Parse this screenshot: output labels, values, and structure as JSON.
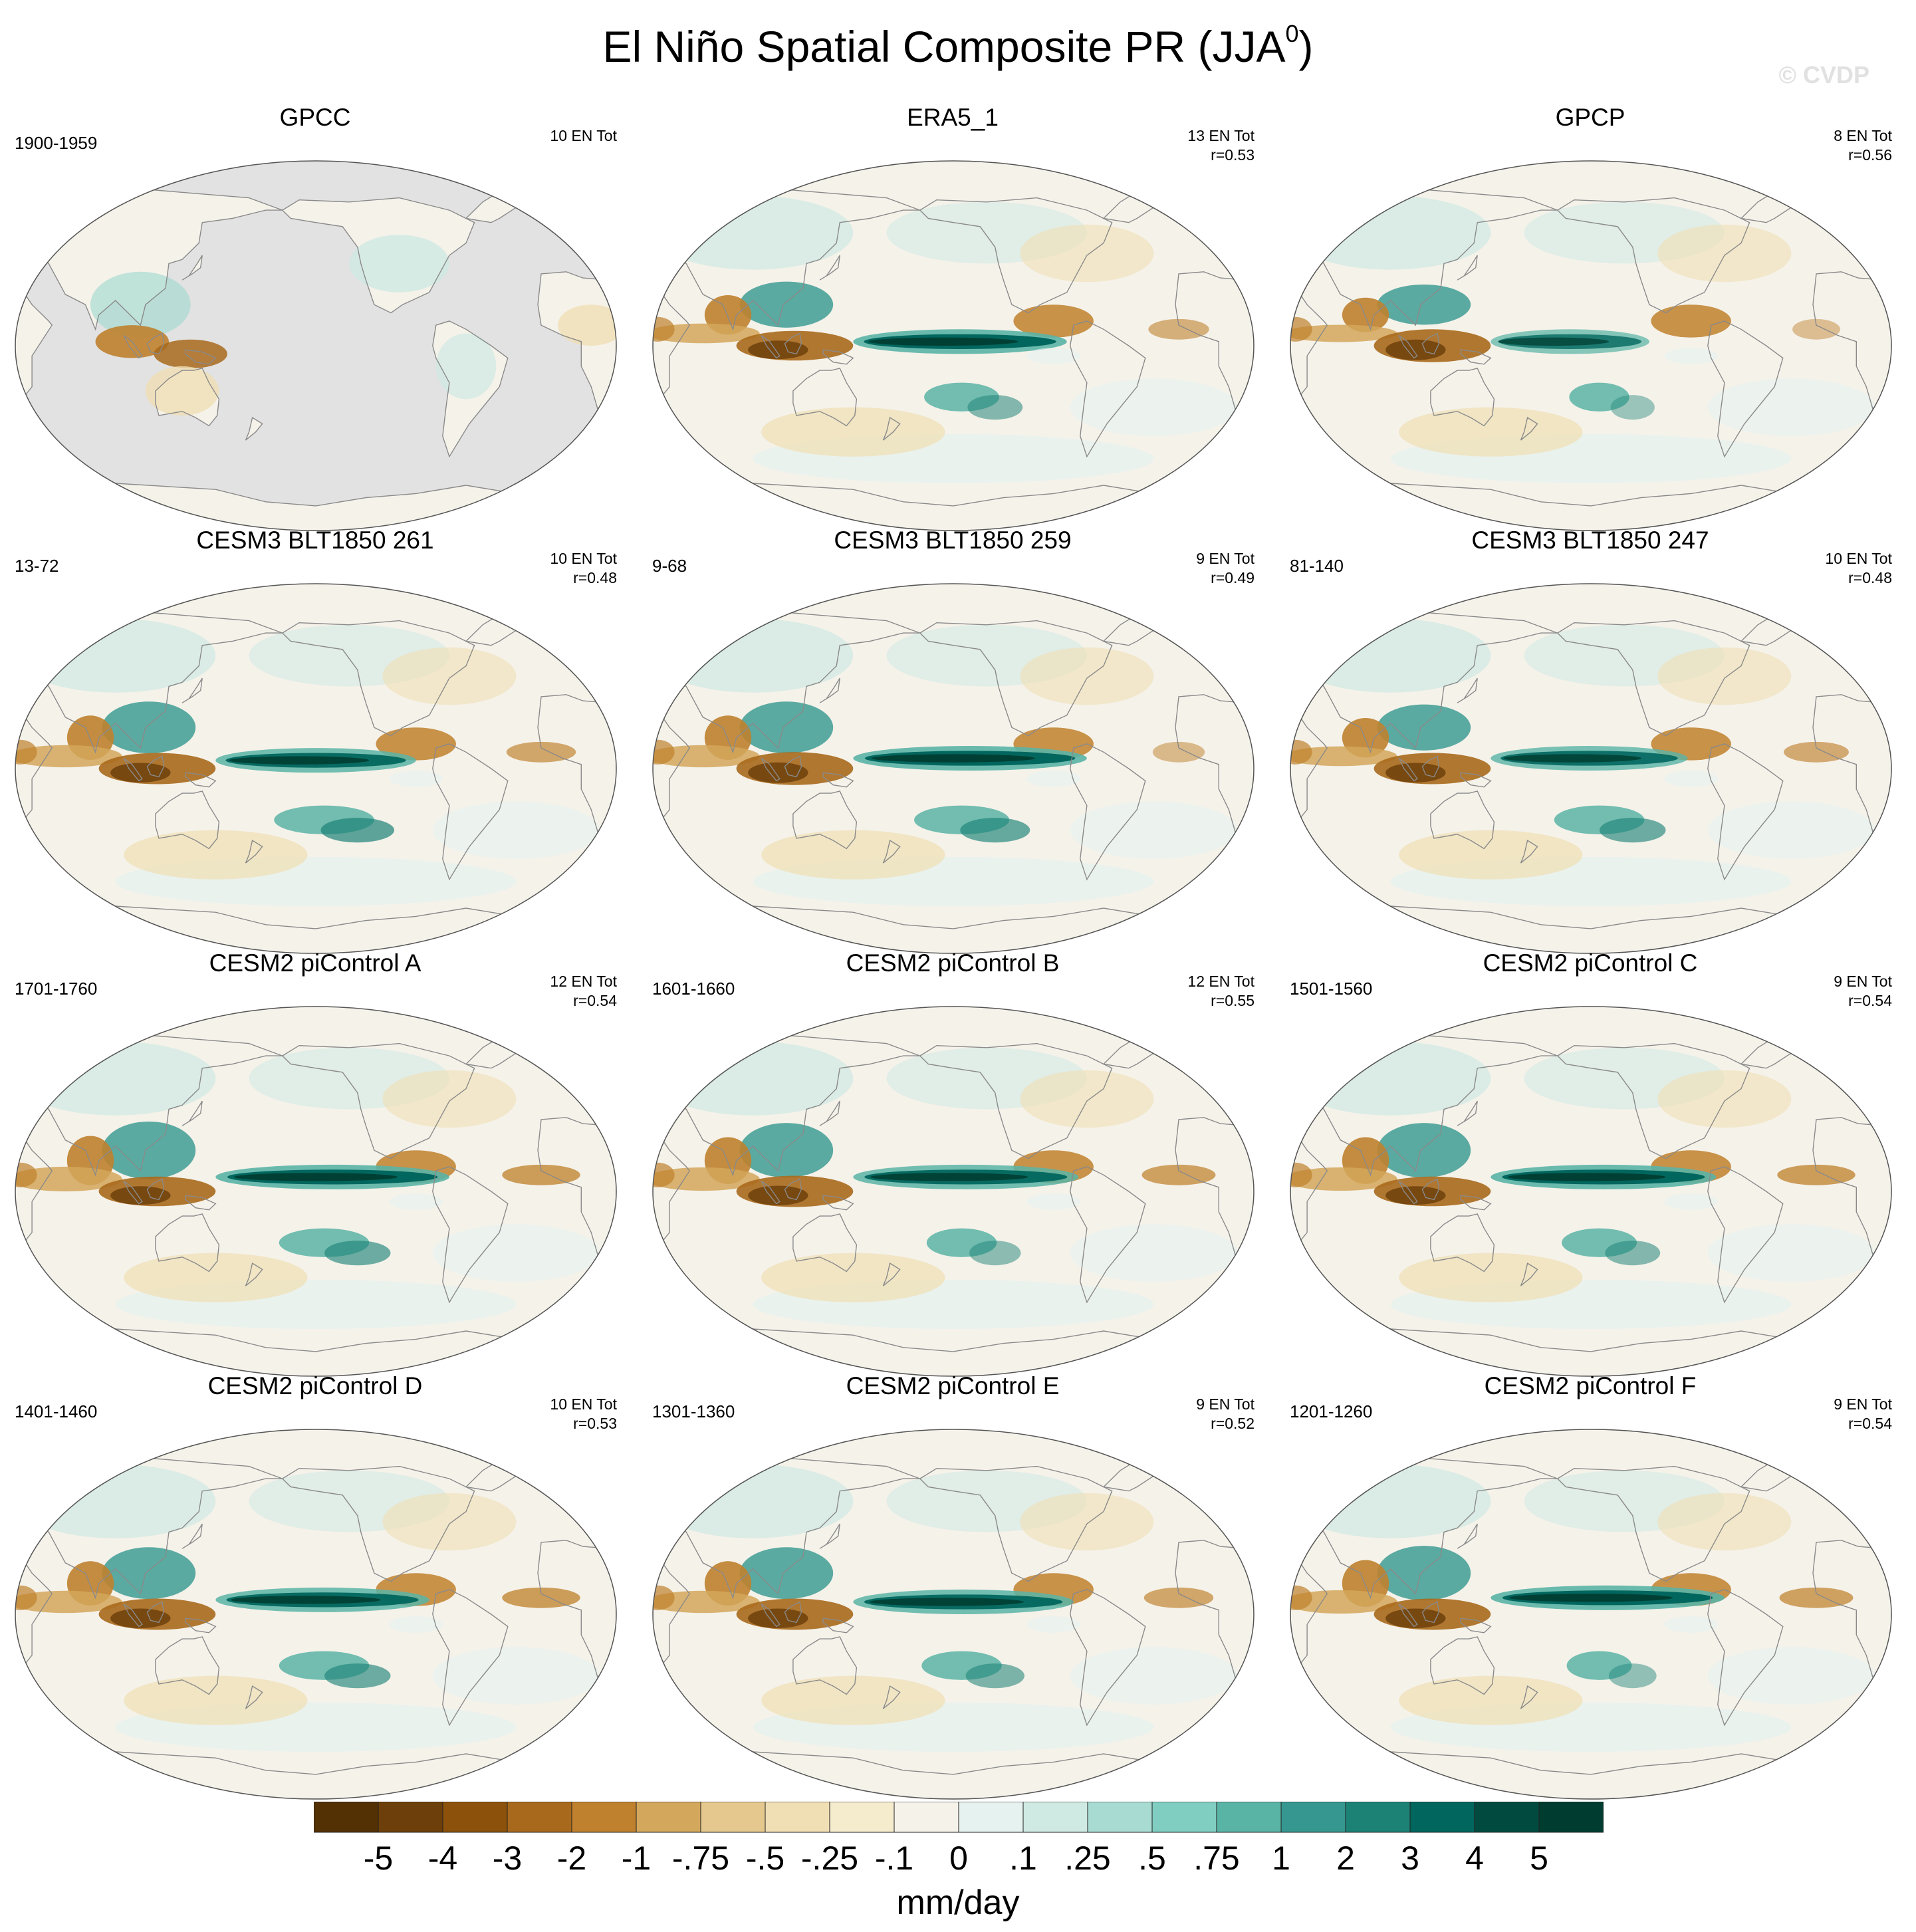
{
  "figure": {
    "title": "El Niño Spatial Composite PR (JJA",
    "title_sup": "0",
    "title_close": ")",
    "watermark": "© CVDP"
  },
  "colors": {
    "land_mask": "#e2e2e2",
    "coast": "#8a8a8a",
    "levels": [
      "#543005",
      "#6d3f0a",
      "#8c510a",
      "#a8691c",
      "#bf812d",
      "#d3a75c",
      "#e5c88e",
      "#f0dfb4",
      "#f5ebcd",
      "#f5f2ea",
      "#e6f2ef",
      "#cfe9e3",
      "#a8dcd2",
      "#80cdc1",
      "#5ab4a6",
      "#35978f",
      "#1d8276",
      "#01665e",
      "#014a40",
      "#003c30"
    ]
  },
  "chart_data": {
    "type": "heatmap",
    "panels": [
      {
        "title": "GPCC",
        "years": "1900-1959",
        "en_total": "10 EN Tot",
        "r": "",
        "land_only": true
      },
      {
        "title": "ERA5_1",
        "years": "",
        "en_total": "13 EN Tot",
        "r": "r=0.53"
      },
      {
        "title": "GPCP",
        "years": "",
        "en_total": "8 EN Tot",
        "r": "r=0.56"
      },
      {
        "title": "CESM3 BLT1850 261",
        "years": "13-72",
        "en_total": "10 EN Tot",
        "r": "r=0.48"
      },
      {
        "title": "CESM3 BLT1850 259",
        "years": "9-68",
        "en_total": "9 EN Tot",
        "r": "r=0.49"
      },
      {
        "title": "CESM3 BLT1850 247",
        "years": "81-140",
        "en_total": "10 EN Tot",
        "r": "r=0.48"
      },
      {
        "title": "CESM2 piControl A",
        "years": "1701-1760",
        "en_total": "12 EN Tot",
        "r": "r=0.54"
      },
      {
        "title": "CESM2 piControl B",
        "years": "1601-1660",
        "en_total": "12 EN Tot",
        "r": "r=0.55"
      },
      {
        "title": "CESM2 piControl C",
        "years": "1501-1560",
        "en_total": "9 EN Tot",
        "r": "r=0.54"
      },
      {
        "title": "CESM2 piControl D",
        "years": "1401-1460",
        "en_total": "10 EN Tot",
        "r": "r=0.53"
      },
      {
        "title": "CESM2 piControl E",
        "years": "1301-1360",
        "en_total": "9 EN Tot",
        "r": "r=0.52"
      },
      {
        "title": "CESM2 piControl F",
        "years": "1201-1260",
        "en_total": "9 EN Tot",
        "r": "r=0.54"
      }
    ],
    "colorbar": {
      "labels": [
        "-5",
        "-4",
        "-3",
        "-2",
        "-1",
        "-.75",
        "-.5",
        "-.25",
        "-.1",
        "0",
        ".1",
        ".25",
        ".5",
        ".75",
        "1",
        "2",
        "3",
        "4",
        "5"
      ],
      "units": "mm/day"
    }
  }
}
